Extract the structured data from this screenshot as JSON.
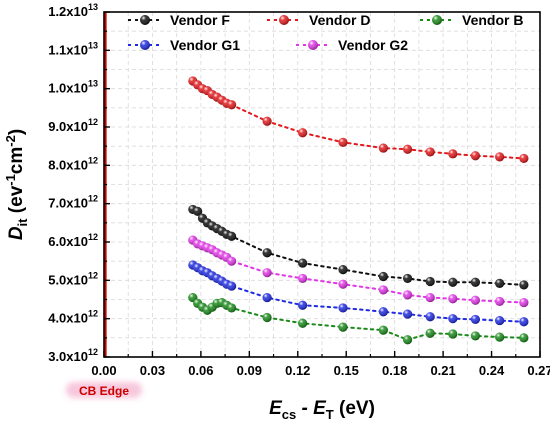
{
  "chart_data": {
    "type": "scatter",
    "xlabel_parts": [
      "E",
      "cs",
      " - E",
      "T",
      " (eV)"
    ],
    "ylabel_parts": [
      "D",
      "it",
      " (ev",
      "-1",
      "cm",
      "-2",
      ")"
    ],
    "xlim": [
      0.0,
      0.27
    ],
    "ylim": [
      3000000000000.0,
      12000000000000.0
    ],
    "x_ticks": [
      0.0,
      0.03,
      0.06,
      0.09,
      0.12,
      0.15,
      0.18,
      0.21,
      0.24,
      0.27
    ],
    "x_tick_labels": [
      "0.00",
      "0.03",
      "0.06",
      "0.09",
      "0.12",
      "0.15",
      "0.18",
      "0.21",
      "0.24",
      "0.27"
    ],
    "y_ticks": [
      {
        "value": 3000000000000.0,
        "mant": "3.0x10",
        "exp": "12"
      },
      {
        "value": 4000000000000.0,
        "mant": "4.0x10",
        "exp": "12"
      },
      {
        "value": 5000000000000.0,
        "mant": "5.0x10",
        "exp": "12"
      },
      {
        "value": 6000000000000.0,
        "mant": "6.0x10",
        "exp": "12"
      },
      {
        "value": 7000000000000.0,
        "mant": "7.0x10",
        "exp": "12"
      },
      {
        "value": 8000000000000.0,
        "mant": "8.0x10",
        "exp": "12"
      },
      {
        "value": 9000000000000.0,
        "mant": "9.0x10",
        "exp": "12"
      },
      {
        "value": 10000000000000.0,
        "mant": "1.0x10",
        "exp": "13"
      },
      {
        "value": 11000000000000.0,
        "mant": "1.1x10",
        "exp": "13"
      },
      {
        "value": 12000000000000.0,
        "mant": "1.2x10",
        "exp": "13"
      }
    ],
    "grid": true,
    "legend_position": "top",
    "annotation": {
      "text": "CB Edge",
      "x": 0.0,
      "color": "#cc0000",
      "highlight": "#f7c7dc"
    },
    "series": [
      {
        "name": "Vendor F",
        "color": "#111111",
        "x": [
          0.055,
          0.058,
          0.061,
          0.064,
          0.067,
          0.07,
          0.073,
          0.076,
          0.079,
          0.101,
          0.123,
          0.148,
          0.173,
          0.188,
          0.202,
          0.216,
          0.23,
          0.245,
          0.26
        ],
        "y": [
          6850000000000.0,
          6800000000000.0,
          6620000000000.0,
          6500000000000.0,
          6420000000000.0,
          6350000000000.0,
          6280000000000.0,
          6200000000000.0,
          6150000000000.0,
          5720000000000.0,
          5450000000000.0,
          5280000000000.0,
          5100000000000.0,
          5050000000000.0,
          4970000000000.0,
          4950000000000.0,
          4950000000000.0,
          4920000000000.0,
          4880000000000.0
        ]
      },
      {
        "name": "Vendor D",
        "color": "#e3191c",
        "x": [
          0.055,
          0.058,
          0.061,
          0.064,
          0.067,
          0.07,
          0.073,
          0.076,
          0.079,
          0.101,
          0.123,
          0.148,
          0.173,
          0.188,
          0.202,
          0.216,
          0.23,
          0.245,
          0.26
        ],
        "y": [
          10200000000000.0,
          10100000000000.0,
          10000000000000.0,
          9950000000000.0,
          9850000000000.0,
          9780000000000.0,
          9700000000000.0,
          9620000000000.0,
          9580000000000.0,
          9150000000000.0,
          8850000000000.0,
          8600000000000.0,
          8450000000000.0,
          8420000000000.0,
          8350000000000.0,
          8300000000000.0,
          8250000000000.0,
          8220000000000.0,
          8180000000000.0
        ]
      },
      {
        "name": "Vendor B",
        "color": "#1b8a1b",
        "x": [
          0.055,
          0.058,
          0.061,
          0.064,
          0.067,
          0.07,
          0.073,
          0.076,
          0.079,
          0.101,
          0.123,
          0.148,
          0.173,
          0.188,
          0.202,
          0.216,
          0.23,
          0.245,
          0.26
        ],
        "y": [
          4550000000000.0,
          4400000000000.0,
          4300000000000.0,
          4220000000000.0,
          4300000000000.0,
          4400000000000.0,
          4420000000000.0,
          4350000000000.0,
          4280000000000.0,
          4030000000000.0,
          3880000000000.0,
          3780000000000.0,
          3700000000000.0,
          3450000000000.0,
          3620000000000.0,
          3600000000000.0,
          3550000000000.0,
          3520000000000.0,
          3500000000000.0
        ]
      },
      {
        "name": "Vendor G1",
        "color": "#1f2be0",
        "x": [
          0.055,
          0.058,
          0.061,
          0.064,
          0.067,
          0.07,
          0.073,
          0.076,
          0.079,
          0.101,
          0.123,
          0.148,
          0.173,
          0.188,
          0.202,
          0.216,
          0.23,
          0.245,
          0.26
        ],
        "y": [
          5400000000000.0,
          5330000000000.0,
          5250000000000.0,
          5200000000000.0,
          5120000000000.0,
          5050000000000.0,
          4980000000000.0,
          4900000000000.0,
          4850000000000.0,
          4550000000000.0,
          4350000000000.0,
          4280000000000.0,
          4180000000000.0,
          4120000000000.0,
          4050000000000.0,
          4000000000000.0,
          3980000000000.0,
          3950000000000.0,
          3920000000000.0
        ]
      },
      {
        "name": "Vendor G2",
        "color": "#e036e6",
        "x": [
          0.055,
          0.058,
          0.061,
          0.064,
          0.067,
          0.07,
          0.073,
          0.076,
          0.079,
          0.101,
          0.123,
          0.148,
          0.173,
          0.188,
          0.202,
          0.216,
          0.23,
          0.245,
          0.26
        ],
        "y": [
          6050000000000.0,
          5950000000000.0,
          5900000000000.0,
          5850000000000.0,
          5800000000000.0,
          5720000000000.0,
          5660000000000.0,
          5600000000000.0,
          5500000000000.0,
          5200000000000.0,
          5050000000000.0,
          4900000000000.0,
          4750000000000.0,
          4620000000000.0,
          4550000000000.0,
          4520000000000.0,
          4480000000000.0,
          4450000000000.0,
          4420000000000.0
        ]
      }
    ]
  }
}
